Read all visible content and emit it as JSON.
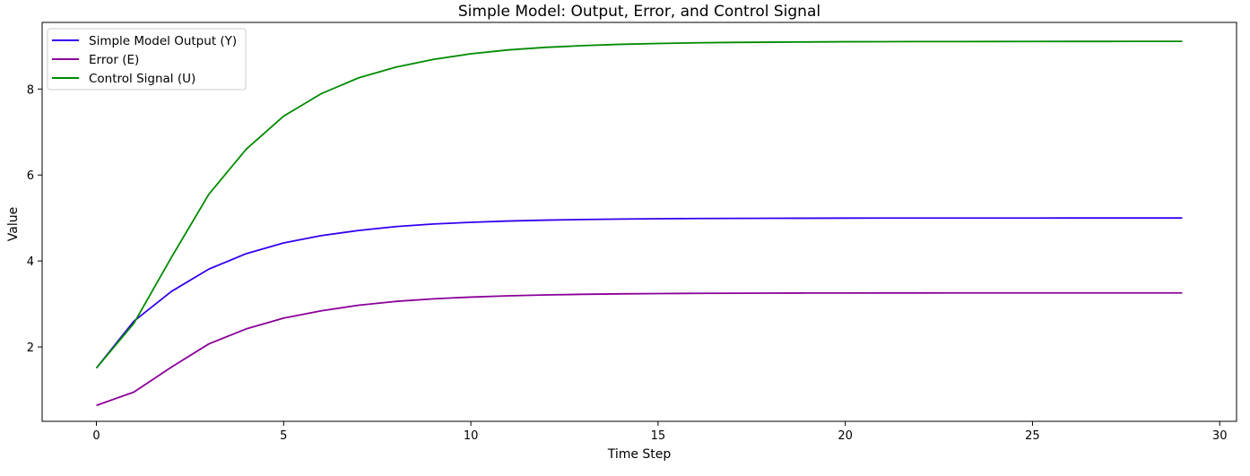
{
  "chart_data": {
    "type": "line",
    "title": "Simple Model: Output, Error, and Control Signal",
    "xlabel": "Time Step",
    "ylabel": "Value",
    "xlim": [
      -1.45,
      30.45
    ],
    "ylim": [
      0.27,
      9.55
    ],
    "xticks": [
      0,
      5,
      10,
      15,
      20,
      25,
      30
    ],
    "yticks": [
      2,
      4,
      6,
      8
    ],
    "legend_position": "upper-left",
    "x": [
      0,
      1,
      2,
      3,
      4,
      5,
      6,
      7,
      8,
      9,
      10,
      11,
      12,
      13,
      14,
      15,
      16,
      17,
      18,
      19,
      20,
      21,
      22,
      23,
      24,
      25,
      26,
      27,
      28,
      29
    ],
    "series": [
      {
        "name": "Simple Model Output (Y)",
        "color": "#3300ee",
        "values": [
          1.51,
          2.6,
          3.29,
          3.81,
          4.17,
          4.42,
          4.59,
          4.71,
          4.8,
          4.86,
          4.9,
          4.93,
          4.95,
          4.965,
          4.975,
          4.983,
          4.988,
          4.991,
          4.994,
          4.995,
          4.997,
          4.998,
          4.998,
          4.999,
          4.999,
          4.999,
          5.0,
          5.0,
          5.0,
          5.0
        ]
      },
      {
        "name": "Error (E)",
        "color": "#8a0099",
        "values": [
          0.64,
          0.95,
          1.53,
          2.07,
          2.42,
          2.67,
          2.84,
          2.97,
          3.06,
          3.12,
          3.16,
          3.19,
          3.21,
          3.225,
          3.235,
          3.242,
          3.247,
          3.25,
          3.252,
          3.254,
          3.255,
          3.256,
          3.256,
          3.257,
          3.257,
          3.257,
          3.258,
          3.258,
          3.258,
          3.258
        ]
      },
      {
        "name": "Control Signal (U)",
        "color": "#008a00",
        "values": [
          1.51,
          2.55,
          4.08,
          5.55,
          6.6,
          7.37,
          7.89,
          8.26,
          8.51,
          8.69,
          8.82,
          8.91,
          8.97,
          9.01,
          9.04,
          9.06,
          9.075,
          9.085,
          9.09,
          9.095,
          9.1,
          9.102,
          9.104,
          9.105,
          9.106,
          9.107,
          9.108,
          9.108,
          9.109,
          9.109
        ]
      }
    ]
  }
}
